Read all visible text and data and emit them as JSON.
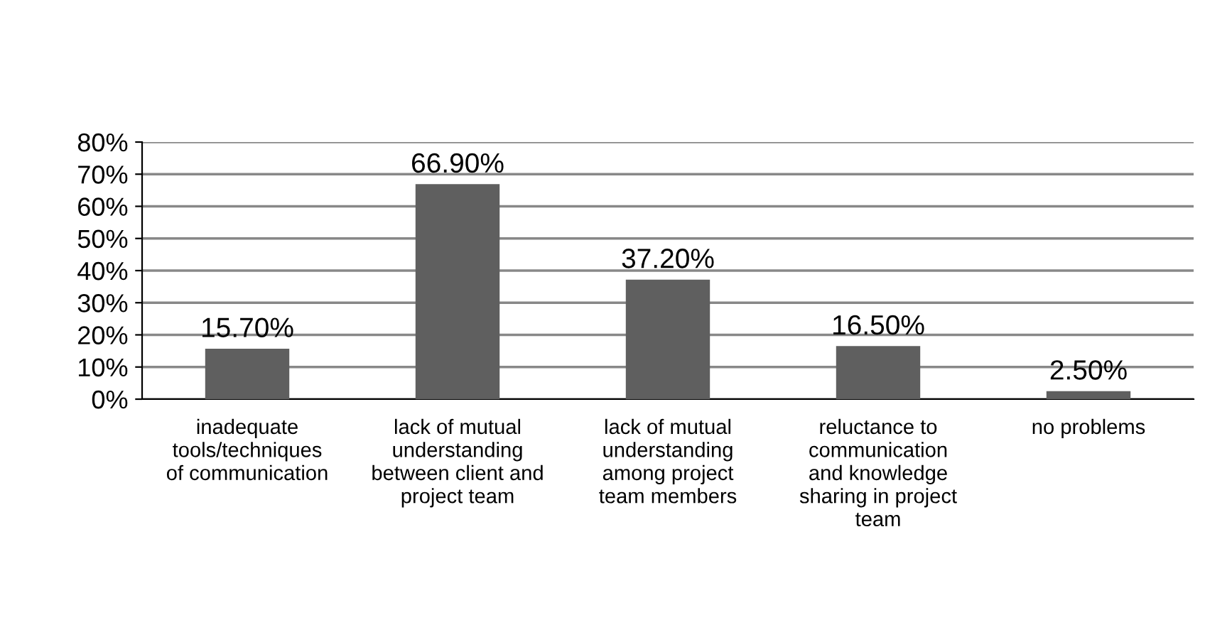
{
  "chart_data": {
    "type": "bar",
    "categories": [
      "inadequate\ntools/techniques\nof communication",
      "lack of mutual\nunderstanding\nbetween client and\nproject team",
      "lack of mutual\nunderstanding\namong project\nteam members",
      "reluctance to\ncommunication\nand knowledge\nsharing in project\nteam",
      "no problems"
    ],
    "values": [
      15.7,
      66.9,
      37.2,
      16.5,
      2.5
    ],
    "value_labels": [
      "15.70%",
      "66.90%",
      "37.20%",
      "16.50%",
      "2.50%"
    ],
    "color": "#5f5f5f",
    "ylim": [
      0,
      80
    ],
    "yticks": [
      {
        "value": 0,
        "label": "0%"
      },
      {
        "value": 10,
        "label": "10%"
      },
      {
        "value": 20,
        "label": "20%"
      },
      {
        "value": 30,
        "label": "30%"
      },
      {
        "value": 40,
        "label": "40%"
      },
      {
        "value": 50,
        "label": "50%"
      },
      {
        "value": 60,
        "label": "60%"
      },
      {
        "value": 70,
        "label": "70%"
      },
      {
        "value": 80,
        "label": "80%"
      }
    ],
    "grid": "y",
    "legend": false
  }
}
